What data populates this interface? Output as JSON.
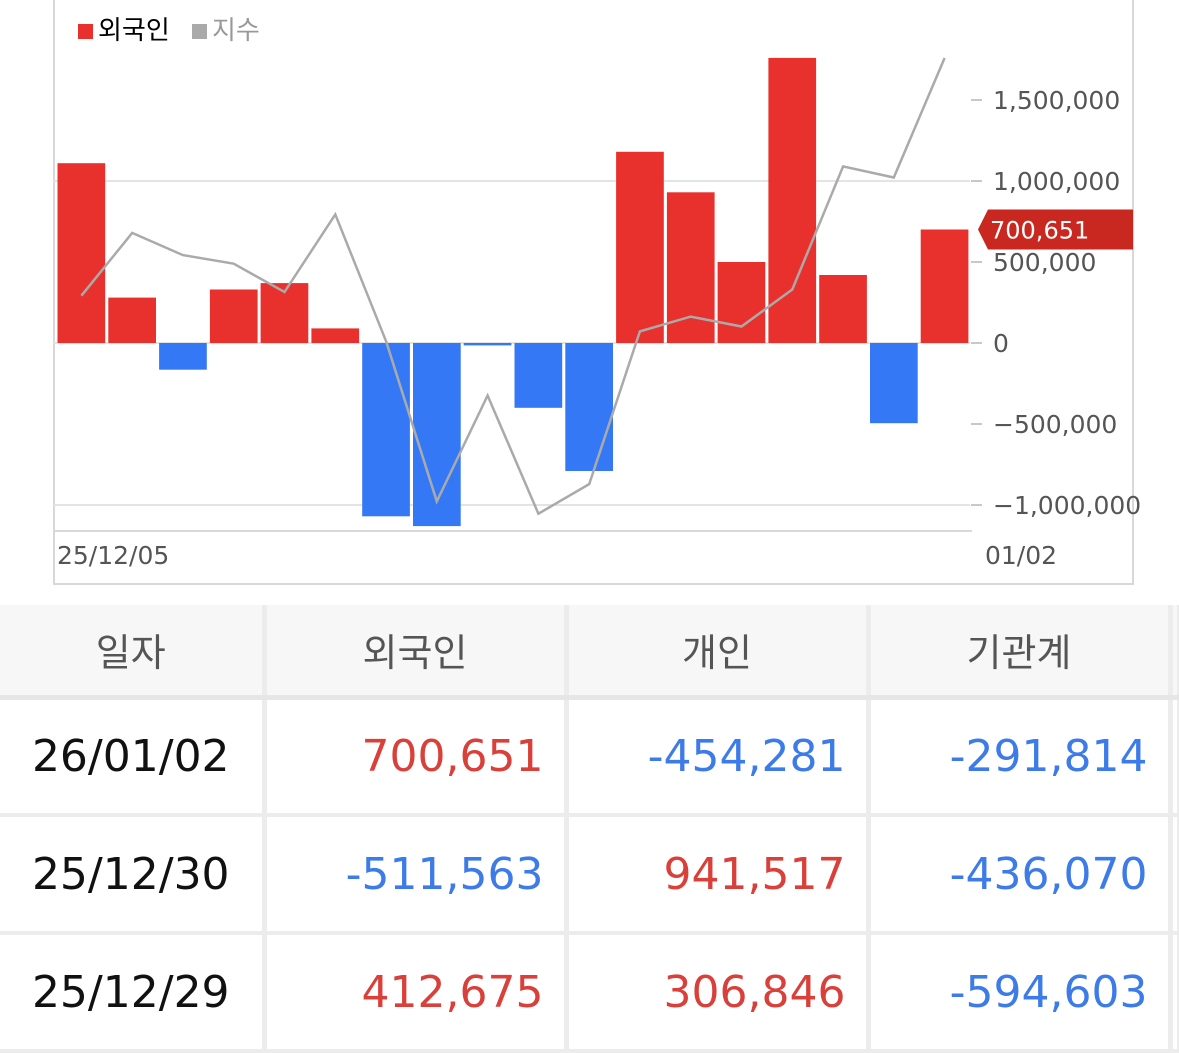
{
  "legend": {
    "foreign_label": "외국인",
    "index_label": "지수"
  },
  "colors": {
    "positive": "#e8312d",
    "negative": "#3478f6",
    "index_line": "#aaaaaa",
    "current_tag": "#c8281f"
  },
  "chart_data": {
    "type": "bar",
    "title": "",
    "xlabel": "",
    "ylabel": "",
    "ylim": [
      -1150000,
      2050000
    ],
    "y_ticks": [
      1500000,
      1000000,
      500000,
      0,
      -500000,
      -1000000
    ],
    "y_tick_labels": [
      "1,500,000",
      "1,000,000",
      "500,000",
      "0",
      "−500,000",
      "−1,000,000"
    ],
    "x_start_label": "25/12/05",
    "x_end_label": "01/02",
    "current_value": 700651,
    "current_value_label": "700,651",
    "series": [
      {
        "name": "외국인",
        "values": [
          1110000,
          280000,
          -165000,
          330000,
          370000,
          90000,
          -1070000,
          -1130000,
          -15000,
          -400000,
          -790000,
          1180000,
          930000,
          500000,
          1760000,
          420000,
          -495000,
          700651
        ]
      },
      {
        "name": "지수",
        "values": [
          3987,
          4038,
          4020,
          4013,
          3990,
          4053,
          3950,
          3820,
          3906,
          3810,
          3834,
          3958,
          3970,
          3962,
          3992,
          4092,
          4083,
          4180
        ]
      }
    ]
  },
  "table": {
    "headers": [
      "일자",
      "외국인",
      "개인",
      "기관계"
    ],
    "rows": [
      {
        "date": "26/01/02",
        "foreign": "700,651",
        "individual": "-454,281",
        "institution": "-291,814"
      },
      {
        "date": "25/12/30",
        "foreign": "-511,563",
        "individual": "941,517",
        "institution": "-436,070"
      },
      {
        "date": "25/12/29",
        "foreign": "412,675",
        "individual": "306,846",
        "institution": "-594,603"
      }
    ]
  }
}
